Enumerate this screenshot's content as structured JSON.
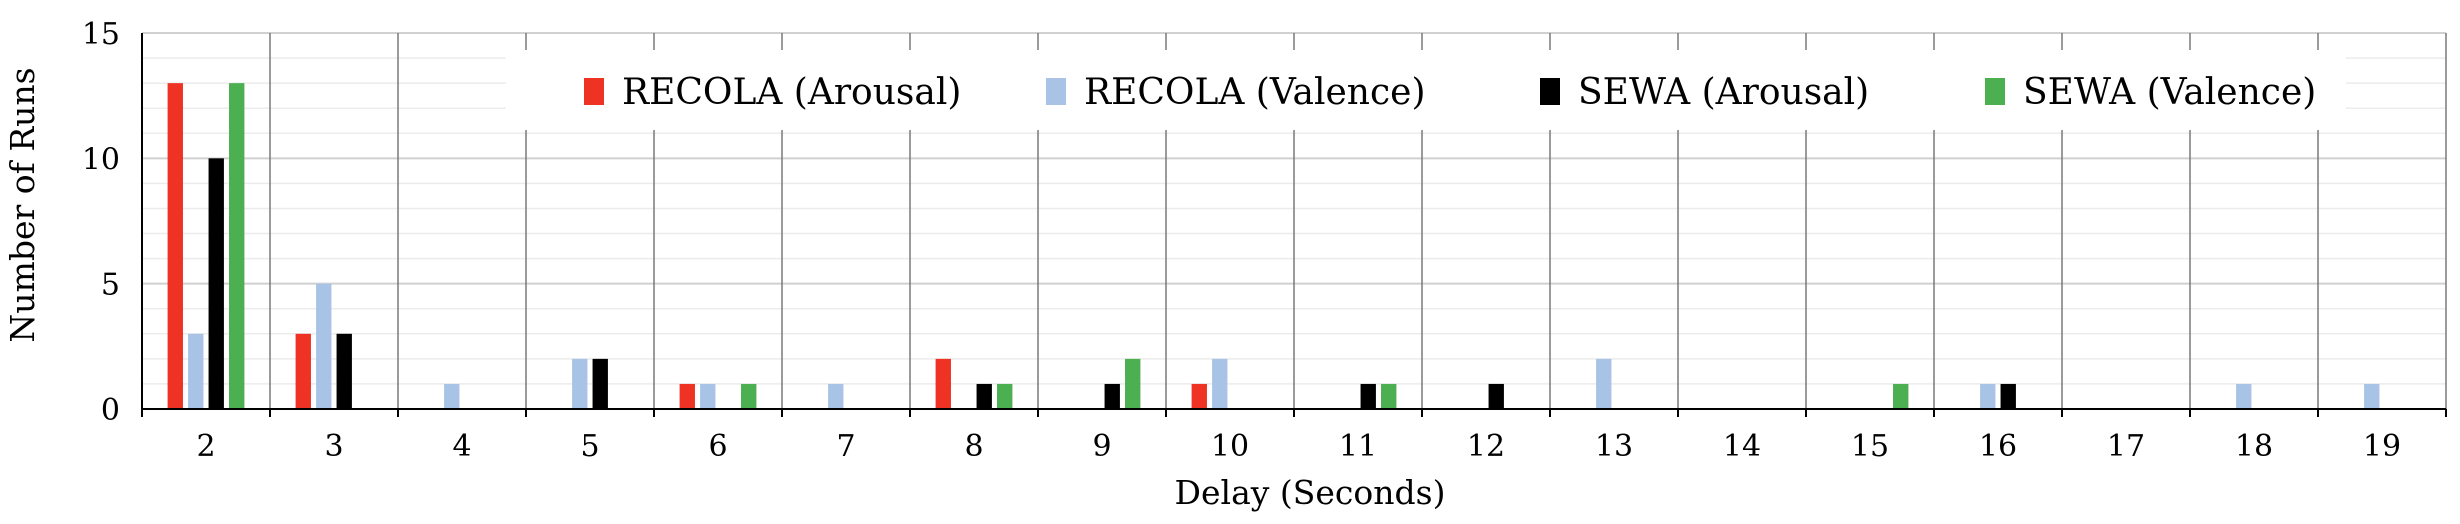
{
  "chart_data": {
    "type": "bar",
    "categories": [
      "2",
      "3",
      "4",
      "5",
      "6",
      "7",
      "8",
      "9",
      "10",
      "11",
      "12",
      "13",
      "14",
      "15",
      "16",
      "17",
      "18",
      "19"
    ],
    "series": [
      {
        "name": "RECOLA (Arousal)",
        "color": "#ee3224",
        "values": [
          13,
          3,
          0,
          0,
          1,
          0,
          2,
          0,
          1,
          0,
          0,
          0,
          0,
          0,
          0,
          0,
          0,
          0
        ]
      },
      {
        "name": "RECOLA (Valence)",
        "color": "#a9c3e6",
        "values": [
          3,
          5,
          1,
          2,
          1,
          1,
          0,
          0,
          2,
          0,
          0,
          2,
          0,
          0,
          1,
          0,
          1,
          1
        ]
      },
      {
        "name": "SEWA (Arousal)",
        "color": "#000000",
        "values": [
          10,
          3,
          0,
          2,
          0,
          0,
          1,
          1,
          0,
          1,
          1,
          0,
          0,
          0,
          1,
          0,
          0,
          0
        ]
      },
      {
        "name": "SEWA (Valence)",
        "color": "#4caf50",
        "values": [
          13,
          0,
          0,
          0,
          1,
          0,
          1,
          2,
          0,
          1,
          0,
          0,
          0,
          1,
          0,
          0,
          0,
          0
        ]
      }
    ],
    "xlabel": "Delay (Seconds)",
    "ylabel": "Number of Runs",
    "ylim": [
      0,
      15
    ],
    "yticks": [
      "0",
      "5",
      "10",
      "15"
    ],
    "grid": true,
    "legend": "top"
  }
}
